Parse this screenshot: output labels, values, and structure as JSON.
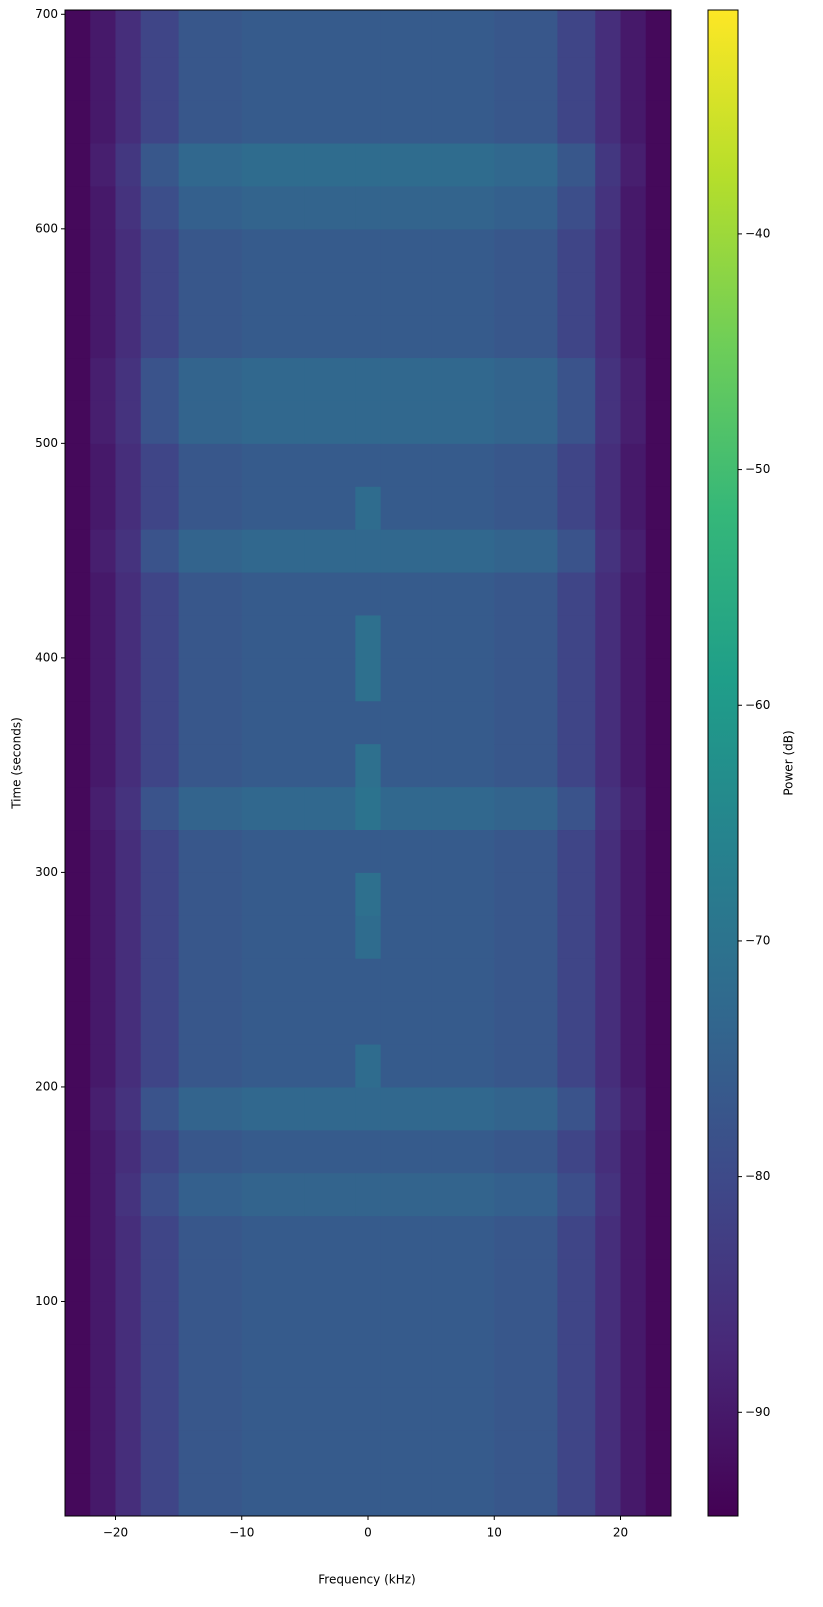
{
  "chart_data": {
    "type": "heatmap",
    "colormap": "viridis",
    "xlabel": "Frequency (kHz)",
    "ylabel": "Time (seconds)",
    "colorbar_label": "Power (dB)",
    "xbins": [
      -24,
      -22,
      -20,
      -18,
      -15,
      -10,
      -5,
      -1,
      1,
      5,
      10,
      15,
      18,
      20,
      22,
      24
    ],
    "ybins": [
      0,
      20,
      40,
      60,
      80,
      100,
      120,
      140,
      160,
      180,
      200,
      220,
      240,
      260,
      280,
      300,
      320,
      340,
      360,
      380,
      400,
      420,
      440,
      460,
      480,
      500,
      520,
      540,
      560,
      580,
      600,
      620,
      640,
      660,
      680,
      702
    ],
    "values": [
      [
        -93,
        -90,
        -86,
        -81,
        -77,
        -76,
        -76,
        -76,
        -76,
        -76,
        -77,
        -81,
        -86,
        -90,
        -93
      ],
      [
        -93,
        -90,
        -86,
        -81,
        -77,
        -76,
        -76,
        -76,
        -76,
        -76,
        -77,
        -81,
        -86,
        -90,
        -93
      ],
      [
        -93,
        -90,
        -86,
        -81,
        -77,
        -76,
        -76,
        -76,
        -76,
        -76,
        -77,
        -81,
        -86,
        -90,
        -93
      ],
      [
        -93,
        -90,
        -86,
        -81,
        -77,
        -76,
        -76,
        -76,
        -76,
        -76,
        -77,
        -81,
        -86,
        -90,
        -93
      ],
      [
        -93,
        -90,
        -86,
        -81,
        -77,
        -76,
        -76,
        -76,
        -76,
        -76,
        -77,
        -81,
        -86,
        -90,
        -93
      ],
      [
        -93,
        -90,
        -86,
        -81,
        -77,
        -76,
        -76,
        -76,
        -76,
        -76,
        -77,
        -81,
        -86,
        -90,
        -93
      ],
      [
        -93,
        -90,
        -86,
        -81,
        -77,
        -76,
        -76,
        -76,
        -76,
        -76,
        -77,
        -81,
        -86,
        -90,
        -93
      ],
      [
        -93,
        -90,
        -85,
        -79,
        -75,
        -74,
        -74,
        -74,
        -74,
        -74,
        -75,
        -79,
        -85,
        -90,
        -93
      ],
      [
        -93,
        -90,
        -86,
        -81,
        -77,
        -76,
        -76,
        -76,
        -76,
        -76,
        -77,
        -81,
        -86,
        -90,
        -93
      ],
      [
        -93,
        -89,
        -85,
        -78,
        -74,
        -73,
        -73,
        -73,
        -73,
        -73,
        -74,
        -78,
        -85,
        -89,
        -93
      ],
      [
        -93,
        -90,
        -86,
        -81,
        -77,
        -76,
        -76,
        -72,
        -76,
        -76,
        -77,
        -81,
        -86,
        -90,
        -93
      ],
      [
        -93,
        -90,
        -86,
        -81,
        -77,
        -76,
        -76,
        -76,
        -76,
        -76,
        -77,
        -81,
        -86,
        -90,
        -93
      ],
      [
        -93,
        -90,
        -86,
        -81,
        -77,
        -76,
        -76,
        -76,
        -76,
        -76,
        -77,
        -81,
        -86,
        -90,
        -93
      ],
      [
        -93,
        -90,
        -86,
        -81,
        -77,
        -76,
        -76,
        -72,
        -76,
        -76,
        -77,
        -81,
        -86,
        -90,
        -93
      ],
      [
        -93,
        -90,
        -86,
        -81,
        -77,
        -76,
        -76,
        -71,
        -76,
        -76,
        -77,
        -81,
        -86,
        -90,
        -93
      ],
      [
        -93,
        -90,
        -86,
        -81,
        -77,
        -76,
        -76,
        -76,
        -76,
        -76,
        -77,
        -81,
        -86,
        -90,
        -93
      ],
      [
        -93,
        -89,
        -85,
        -78,
        -74,
        -73,
        -73,
        -70,
        -73,
        -73,
        -74,
        -78,
        -85,
        -89,
        -93
      ],
      [
        -93,
        -90,
        -86,
        -81,
        -77,
        -76,
        -76,
        -71,
        -76,
        -76,
        -77,
        -81,
        -86,
        -90,
        -93
      ],
      [
        -93,
        -90,
        -86,
        -81,
        -77,
        -76,
        -76,
        -76,
        -76,
        -76,
        -77,
        -81,
        -86,
        -90,
        -93
      ],
      [
        -93,
        -90,
        -86,
        -81,
        -77,
        -76,
        -76,
        -71,
        -76,
        -76,
        -77,
        -81,
        -86,
        -90,
        -93
      ],
      [
        -93,
        -90,
        -86,
        -81,
        -77,
        -76,
        -76,
        -71,
        -76,
        -76,
        -77,
        -81,
        -86,
        -90,
        -93
      ],
      [
        -93,
        -90,
        -86,
        -81,
        -77,
        -76,
        -76,
        -76,
        -76,
        -76,
        -77,
        -81,
        -86,
        -90,
        -93
      ],
      [
        -93,
        -89,
        -85,
        -78,
        -74,
        -73,
        -73,
        -73,
        -73,
        -73,
        -74,
        -78,
        -85,
        -89,
        -93
      ],
      [
        -93,
        -90,
        -86,
        -81,
        -77,
        -76,
        -76,
        -72,
        -76,
        -76,
        -77,
        -81,
        -86,
        -90,
        -93
      ],
      [
        -93,
        -90,
        -86,
        -81,
        -77,
        -76,
        -76,
        -76,
        -76,
        -76,
        -77,
        -81,
        -86,
        -90,
        -93
      ],
      [
        -93,
        -89,
        -85,
        -78,
        -74,
        -73,
        -73,
        -73,
        -73,
        -73,
        -74,
        -78,
        -85,
        -89,
        -93
      ],
      [
        -93,
        -89,
        -85,
        -78,
        -74,
        -73,
        -73,
        -73,
        -73,
        -73,
        -74,
        -78,
        -85,
        -89,
        -93
      ],
      [
        -93,
        -90,
        -86,
        -81,
        -77,
        -76,
        -76,
        -76,
        -76,
        -76,
        -77,
        -81,
        -86,
        -90,
        -93
      ],
      [
        -93,
        -90,
        -86,
        -81,
        -77,
        -76,
        -76,
        -76,
        -76,
        -76,
        -77,
        -81,
        -86,
        -90,
        -93
      ],
      [
        -93,
        -90,
        -86,
        -81,
        -77,
        -76,
        -76,
        -76,
        -76,
        -76,
        -77,
        -81,
        -86,
        -90,
        -93
      ],
      [
        -93,
        -90,
        -85,
        -79,
        -75,
        -74,
        -74,
        -74,
        -74,
        -74,
        -75,
        -79,
        -85,
        -90,
        -93
      ],
      [
        -93,
        -89,
        -84,
        -77,
        -73,
        -72,
        -72,
        -72,
        -72,
        -72,
        -73,
        -77,
        -84,
        -89,
        -93
      ],
      [
        -93,
        -90,
        -86,
        -81,
        -77,
        -76,
        -76,
        -76,
        -76,
        -76,
        -77,
        -81,
        -86,
        -90,
        -93
      ],
      [
        -93,
        -90,
        -86,
        -81,
        -77,
        -76,
        -76,
        -76,
        -76,
        -76,
        -77,
        -81,
        -86,
        -90,
        -93
      ],
      [
        -93,
        -90,
        -86,
        -81,
        -77,
        -76,
        -76,
        -76,
        -76,
        -76,
        -77,
        -81,
        -86,
        -90,
        -93
      ]
    ],
    "xlim": [
      -24,
      24
    ],
    "ylim": [
      0,
      702
    ],
    "clim": [
      -94.4,
      -30.5
    ],
    "xticks": [
      {
        "value": -20,
        "label": "−20"
      },
      {
        "value": -10,
        "label": "−10"
      },
      0,
      10,
      20
    ],
    "yticks": [
      100,
      200,
      300,
      400,
      500,
      600,
      700
    ],
    "cticks": [
      {
        "value": -90,
        "label": "−90"
      },
      {
        "value": -80,
        "label": "−80"
      },
      {
        "value": -70,
        "label": "−70"
      },
      {
        "value": -60,
        "label": "−60"
      },
      {
        "value": -50,
        "label": "−50"
      },
      {
        "value": -40,
        "label": "−40"
      }
    ]
  }
}
